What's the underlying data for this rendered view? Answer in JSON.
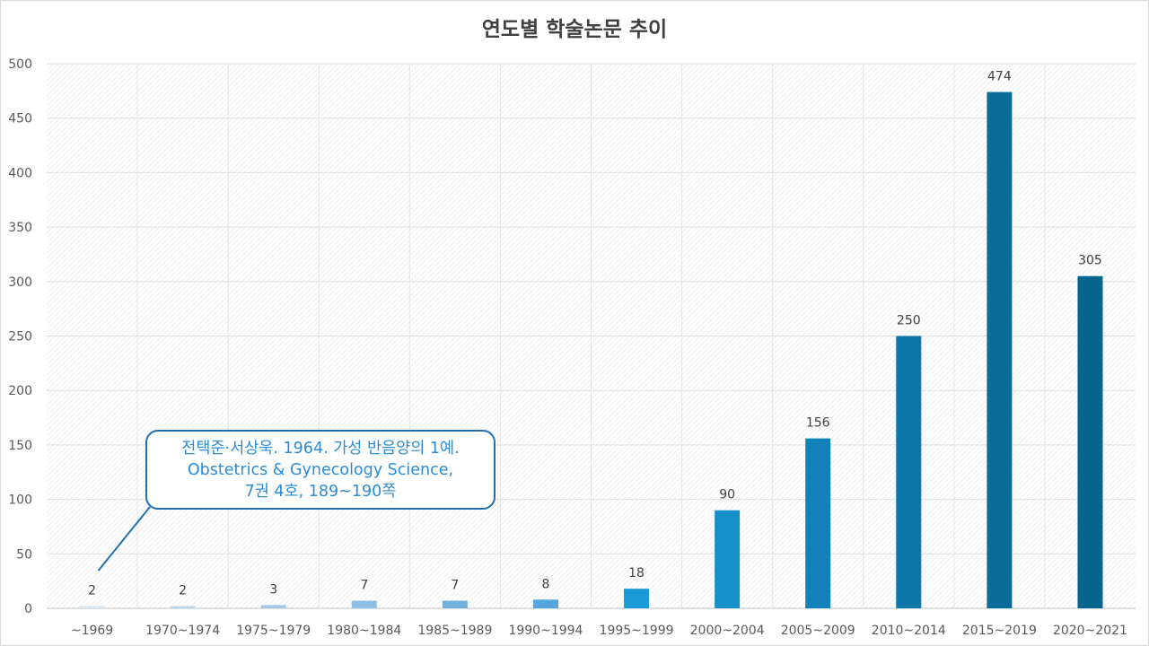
{
  "chart_data": {
    "type": "bar",
    "title": "연도별 학술논문 추이",
    "xlabel": "",
    "ylabel": "",
    "ylim": [
      0,
      500
    ],
    "yticks": [
      0,
      50,
      100,
      150,
      200,
      250,
      300,
      350,
      400,
      450,
      500
    ],
    "grid": true,
    "legend": "none",
    "categories": [
      "~1969",
      "1970~1974",
      "1975~1979",
      "1980~1984",
      "1985~1989",
      "1990~1994",
      "1995~1999",
      "2000~2004",
      "2005~2009",
      "2010~2014",
      "2015~2019",
      "2020~2021"
    ],
    "values": [
      2,
      2,
      3,
      7,
      7,
      8,
      18,
      90,
      156,
      250,
      474,
      305
    ],
    "bar_colors": [
      "#d6e6f2",
      "#bcd7ec",
      "#a2c8e6",
      "#8dbde3",
      "#72b0de",
      "#56a5dc",
      "#1a9ad6",
      "#1690c8",
      "#1283ba",
      "#0e77aa",
      "#0a6d99",
      "#06668d"
    ],
    "annotation": {
      "target_category": "~1969",
      "lines": [
        "전택준·서상욱. 1964. 가성 반음양의 1예.",
        "Obstetrics & Gynecology Science,",
        "7권 4호, 189~190쪽"
      ]
    }
  }
}
